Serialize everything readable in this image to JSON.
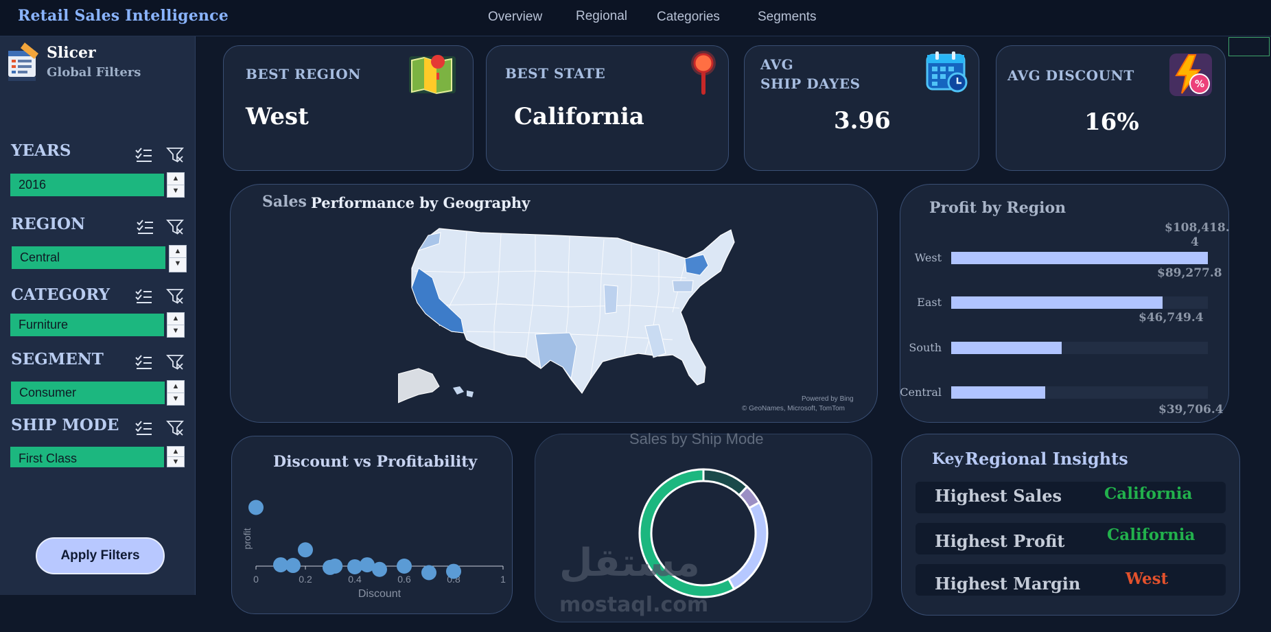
{
  "app": {
    "title": "Retail Sales Intelligence",
    "nav": [
      "Overview",
      "Regional",
      "Categories",
      "Segments"
    ]
  },
  "sidebar": {
    "title": "Slicer",
    "subtitle": "Global Filters",
    "filters": [
      {
        "label": "YEARS",
        "value": "2016"
      },
      {
        "label": "REGION",
        "value": "Central"
      },
      {
        "label": "CATEGORY",
        "value": "Furniture"
      },
      {
        "label": "SEGMENT",
        "value": "Consumer"
      },
      {
        "label": "SHIP MODE",
        "value": "First Class"
      }
    ],
    "apply_label": "Apply Filters"
  },
  "kpis": [
    {
      "label_line1": "BEST REGION",
      "label_line2": "",
      "value": "West",
      "icon": "map-icon"
    },
    {
      "label_line1": "BEST STATE",
      "label_line2": "",
      "value": "California",
      "icon": "pin-icon"
    },
    {
      "label_line1": "AVG",
      "label_line2": "SHIP DAYES",
      "value": "3.96",
      "icon": "calendar-icon"
    },
    {
      "label_line1": "AVG DISCOUNT",
      "label_line2": "",
      "value": "16%",
      "icon": "discount-icon"
    }
  ],
  "map_card": {
    "title_a": "Sales",
    "title_b": "Performance by Geography",
    "credit_line1": "Powered by Bing",
    "credit_line2": "© GeoNames, Microsoft, TomTom"
  },
  "profit_card": {
    "title": "Profit by Region",
    "rows": [
      {
        "region": "West",
        "value_label_a": "$108,418.",
        "value_label_b": "4",
        "value": 108418.4
      },
      {
        "region": "East",
        "value_label_a": "$89,277.8",
        "value_label_b": "",
        "value": 89277.8
      },
      {
        "region": "South",
        "value_label_a": "$46,749.4",
        "value_label_b": "",
        "value": 46749.4
      },
      {
        "region": "Central",
        "value_label_a": "$39,706.4",
        "value_label_b": "",
        "value": 39706.4
      }
    ]
  },
  "scatter_card": {
    "title": "Discount vs Profitability",
    "xlabel": "Discount",
    "ylabel": "profit",
    "xticks": [
      "0",
      "0.2",
      "0.4",
      "0.6",
      "0.8",
      "1"
    ]
  },
  "donut_card": {
    "title": "Sales by Ship Mode"
  },
  "insights_card": {
    "title_a": "Key",
    "title_b": "Regional Insights",
    "rows": [
      {
        "label": "Highest Sales",
        "value": "California",
        "color": "#22b14c"
      },
      {
        "label": "Highest Profit",
        "value": "California",
        "color": "#22b14c"
      },
      {
        "label": "Highest Margin",
        "value": "West",
        "color": "#e2512c"
      }
    ]
  },
  "watermark": {
    "arabic": "مستقل",
    "latin": "mostaql.com"
  },
  "chart_data": [
    {
      "type": "bar",
      "title": "Profit by Region",
      "categories": [
        "West",
        "East",
        "South",
        "Central"
      ],
      "values": [
        108418.4,
        89277.8,
        46749.4,
        39706.4
      ]
    },
    {
      "type": "scatter",
      "title": "Discount vs Profitability",
      "xlabel": "Discount",
      "ylabel": "profit",
      "xlim": [
        0,
        1
      ],
      "x": [
        0,
        0.1,
        0.15,
        0.2,
        0.3,
        0.32,
        0.4,
        0.45,
        0.5,
        0.6,
        0.7,
        0.8
      ],
      "y": [
        0.9,
        0.02,
        0.01,
        0.25,
        -0.02,
        0.0,
        -0.01,
        0.02,
        -0.05,
        0.0,
        -0.1,
        -0.08
      ]
    },
    {
      "type": "pie",
      "title": "Sales by Ship Mode",
      "values": [
        12,
        5,
        25,
        58
      ],
      "colors": [
        "#1a4a4a",
        "#9b8fc4",
        "#b6c8ff",
        "#1cb77f"
      ]
    }
  ]
}
